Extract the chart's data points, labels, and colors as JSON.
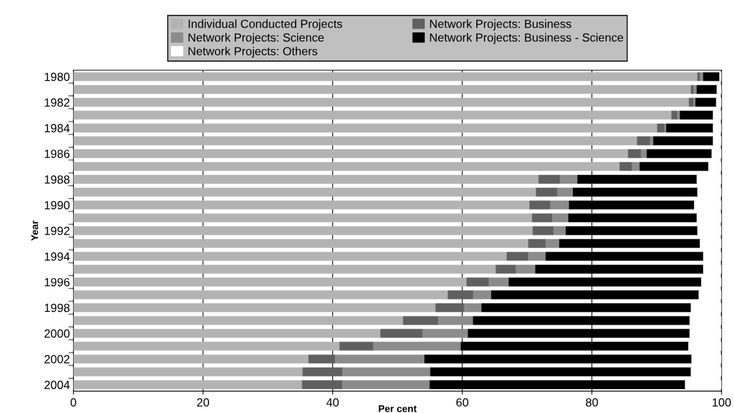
{
  "chart_data": {
    "type": "bar",
    "orientation": "horizontal",
    "stacked": true,
    "xlabel": "Per cent",
    "ylabel": "Year",
    "categories": [
      "1980",
      null,
      "1982",
      null,
      "1984",
      null,
      "1986",
      null,
      "1988",
      null,
      "1990",
      null,
      "1992",
      null,
      "1994",
      null,
      "1996",
      null,
      "1998",
      null,
      "2000",
      null,
      "2002",
      null,
      "2004"
    ],
    "series": [
      {
        "name": "Individual Conducted Projects",
        "color": "#b3b3b3",
        "values": [
          96.3,
          95.3,
          95.0,
          92.3,
          90.1,
          87.0,
          85.6,
          84.3,
          71.8,
          71.4,
          70.4,
          70.8,
          70.9,
          70.2,
          66.9,
          65.2,
          60.7,
          57.8,
          55.9,
          50.9,
          47.4,
          41.1,
          36.3,
          35.4,
          35.3
        ]
      },
      {
        "name": "Network Projects: Business",
        "color": "#606060",
        "values": [
          0.4,
          0.4,
          0.7,
          0.9,
          1.1,
          2.0,
          2.0,
          1.9,
          3.3,
          3.3,
          3.2,
          3.1,
          3.2,
          2.7,
          3.3,
          3.1,
          3.4,
          3.9,
          4.4,
          5.4,
          6.5,
          5.2,
          4.1,
          6.1,
          6.2
        ]
      },
      {
        "name": "Network Projects: Science",
        "color": "#8c8c8c",
        "values": [
          0.5,
          0.5,
          0.3,
          0.4,
          0.3,
          0.5,
          0.9,
          1.2,
          2.7,
          2.4,
          2.9,
          2.5,
          1.9,
          2.1,
          2.7,
          3.0,
          3.1,
          2.8,
          2.7,
          5.4,
          7.0,
          13.5,
          13.8,
          13.6,
          13.5
        ]
      },
      {
        "name": "Network Projects: Business - Science",
        "color": "#000000",
        "values": [
          2.5,
          3.1,
          3.2,
          5.1,
          7.2,
          9.2,
          10.0,
          10.6,
          18.4,
          19.2,
          19.3,
          19.8,
          20.3,
          21.7,
          24.3,
          25.9,
          29.7,
          32.0,
          32.3,
          33.4,
          34.2,
          35.1,
          41.2,
          40.2,
          39.4
        ]
      },
      {
        "name": "Network Projects: Others",
        "color": "#ffffff",
        "values": [
          0.3,
          0.7,
          0.8,
          1.3,
          1.3,
          1.3,
          1.5,
          2.0,
          3.8,
          3.7,
          4.2,
          3.8,
          3.7,
          3.3,
          2.8,
          2.8,
          3.1,
          3.5,
          4.7,
          4.9,
          4.9,
          5.1,
          4.6,
          4.7,
          5.6
        ]
      }
    ],
    "xlim": [
      0,
      100
    ],
    "xticks": [
      0,
      20,
      40,
      60,
      80,
      100
    ],
    "grid": "x",
    "legend": "top"
  }
}
